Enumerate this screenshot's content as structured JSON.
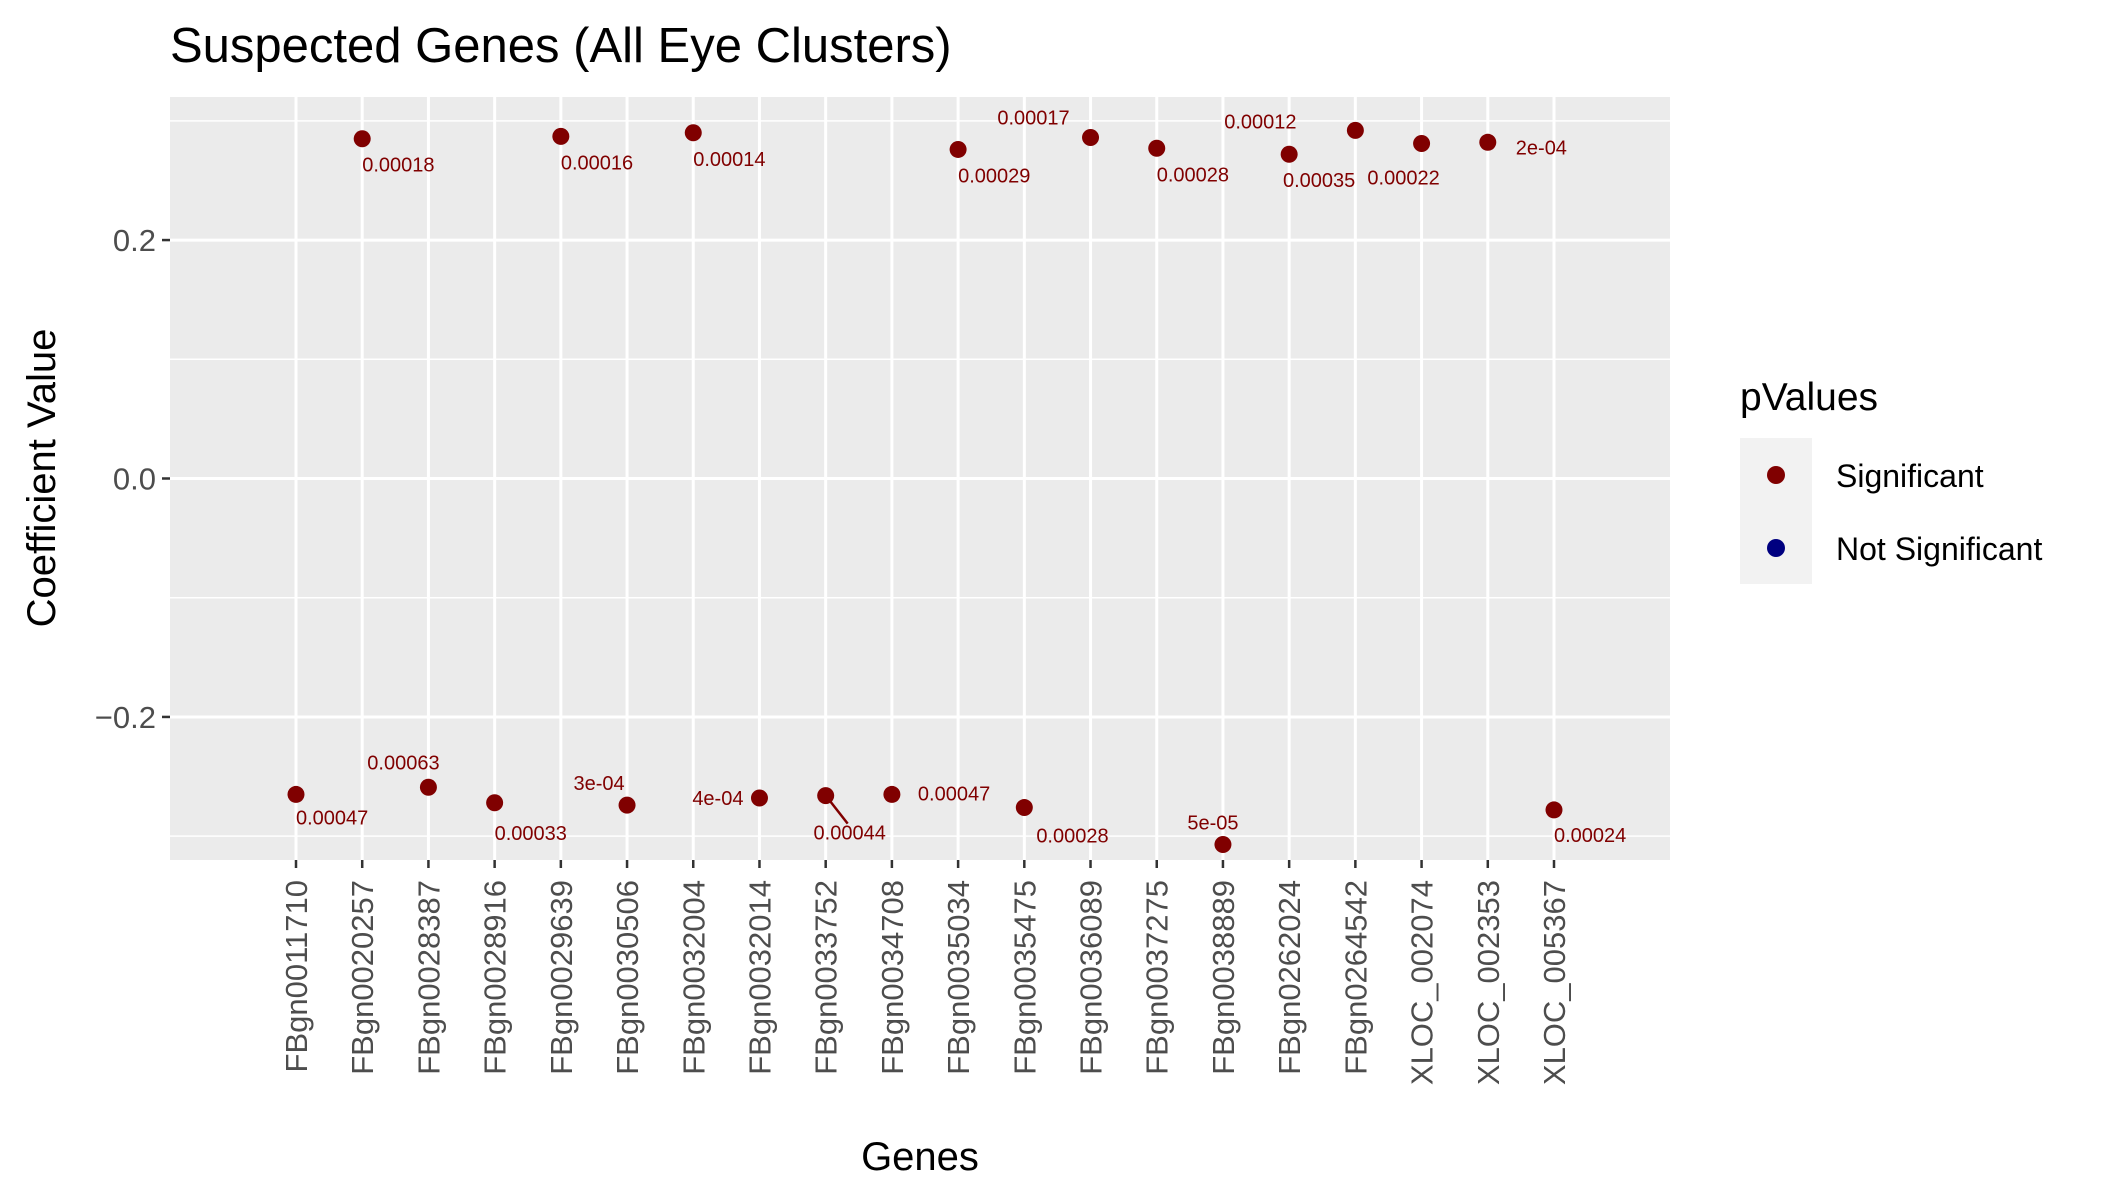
{
  "chart_data": {
    "type": "scatter",
    "title": "Suspected Genes (All Eye Clusters)",
    "xlabel": "Genes",
    "ylabel": "Coefficient Value",
    "ylim": [
      -0.32,
      0.32
    ],
    "yticks": [
      -0.2,
      0.0,
      0.2
    ],
    "ytick_labels": [
      "−0.2",
      "0.0",
      "0.2"
    ],
    "grid": true,
    "legend_position": "right",
    "categories": [
      "FBgn0011710",
      "FBgn0020257",
      "FBgn0028387",
      "FBgn0028916",
      "FBgn0029639",
      "FBgn0030506",
      "FBgn0032004",
      "FBgn0032014",
      "FBgn0033752",
      "FBgn0034708",
      "FBgn0035034",
      "FBgn0035475",
      "FBgn0036089",
      "FBgn0037275",
      "FBgn0038889",
      "FBgn0262024",
      "FBgn0264542",
      "XLOC_002074",
      "XLOC_002353",
      "XLOC_005367"
    ],
    "legend": {
      "title": "pValues",
      "entries": [
        {
          "label": "Significant",
          "color": "#800000"
        },
        {
          "label": "Not Significant",
          "color": "#000080"
        }
      ]
    },
    "points": [
      {
        "x": "FBgn0011710",
        "y": -0.265,
        "label": "0.00047",
        "group": "Significant"
      },
      {
        "x": "FBgn0020257",
        "y": 0.285,
        "label": "0.00018",
        "group": "Significant"
      },
      {
        "x": "FBgn0028387",
        "y": -0.259,
        "label": "0.00063",
        "group": "Significant"
      },
      {
        "x": "FBgn0028916",
        "y": -0.272,
        "label": "0.00033",
        "group": "Significant"
      },
      {
        "x": "FBgn0029639",
        "y": 0.287,
        "label": "0.00016",
        "group": "Significant"
      },
      {
        "x": "FBgn0030506",
        "y": -0.274,
        "label": "3e-04",
        "group": "Significant"
      },
      {
        "x": "FBgn0032004",
        "y": 0.29,
        "label": "0.00014",
        "group": "Significant"
      },
      {
        "x": "FBgn0032014",
        "y": -0.268,
        "label": "4e-04",
        "group": "Significant"
      },
      {
        "x": "FBgn0033752",
        "y": -0.266,
        "label": "0.00044",
        "group": "Significant"
      },
      {
        "x": "FBgn0034708",
        "y": -0.265,
        "label": "0.00047",
        "group": "Significant"
      },
      {
        "x": "FBgn0035034",
        "y": 0.276,
        "label": "0.00029",
        "group": "Significant"
      },
      {
        "x": "FBgn0035475",
        "y": -0.276,
        "label": "0.00028",
        "group": "Significant"
      },
      {
        "x": "FBgn0036089",
        "y": 0.286,
        "label": "0.00017",
        "group": "Significant"
      },
      {
        "x": "FBgn0037275",
        "y": 0.277,
        "label": "0.00028",
        "group": "Significant"
      },
      {
        "x": "FBgn0038889",
        "y": -0.307,
        "label": "5e-05",
        "group": "Significant"
      },
      {
        "x": "FBgn0262024",
        "y": 0.272,
        "label": "0.00035",
        "group": "Significant"
      },
      {
        "x": "FBgn0264542",
        "y": 0.292,
        "label": "0.00012",
        "group": "Significant"
      },
      {
        "x": "XLOC_002074",
        "y": 0.281,
        "label": "0.00022",
        "group": "Significant"
      },
      {
        "x": "XLOC_002353",
        "y": 0.282,
        "label": "2e-04",
        "group": "Significant"
      },
      {
        "x": "XLOC_005367",
        "y": -0.278,
        "label": "0.00024",
        "group": "Significant"
      }
    ]
  }
}
